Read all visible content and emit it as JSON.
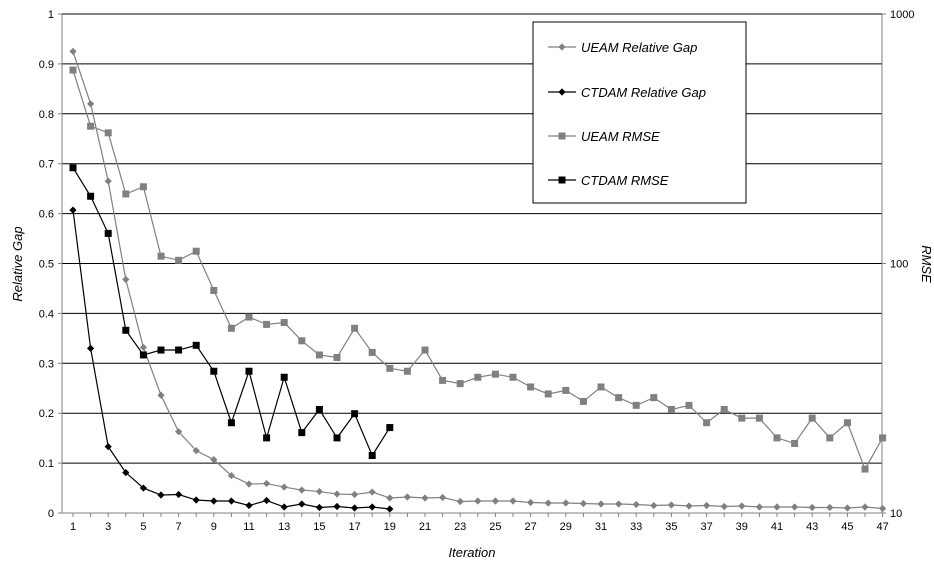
{
  "chart_data": {
    "type": "line",
    "xlabel": "Iteration",
    "ylabel": "Relative Gap",
    "y2label": "RMSE",
    "xlim": [
      1,
      47
    ],
    "ylim": [
      0,
      1
    ],
    "y2lim": [
      10,
      1000
    ],
    "y2_scale": "log",
    "x_tick_labels": [
      "1",
      "3",
      "5",
      "7",
      "9",
      "11",
      "13",
      "15",
      "17",
      "19",
      "21",
      "23",
      "25",
      "27",
      "29",
      "31",
      "33",
      "35",
      "37",
      "39",
      "41",
      "43",
      "45",
      "47"
    ],
    "y_tick_labels": [
      "0",
      "0.1",
      "0.2",
      "0.3",
      "0.4",
      "0.5",
      "0.6",
      "0.7",
      "0.8",
      "0.9",
      "1"
    ],
    "y2_tick_labels": [
      "10",
      "100",
      "1000"
    ],
    "grid": "horizontal",
    "legend_position": "top-right",
    "series": [
      {
        "name": "UEAM Relative Gap",
        "axis": "left",
        "marker": "diamond",
        "color": "#808080",
        "x": [
          1,
          2,
          3,
          4,
          5,
          6,
          7,
          8,
          9,
          10,
          11,
          12,
          13,
          14,
          15,
          16,
          17,
          18,
          19,
          20,
          21,
          22,
          23,
          24,
          25,
          26,
          27,
          28,
          29,
          30,
          31,
          32,
          33,
          34,
          35,
          36,
          37,
          38,
          39,
          40,
          41,
          42,
          43,
          44,
          45,
          46,
          47
        ],
        "values": [
          0.925,
          0.82,
          0.665,
          0.468,
          0.332,
          0.236,
          0.163,
          0.125,
          0.107,
          0.075,
          0.058,
          0.059,
          0.052,
          0.046,
          0.043,
          0.038,
          0.037,
          0.042,
          0.03,
          0.032,
          0.03,
          0.031,
          0.023,
          0.024,
          0.024,
          0.024,
          0.021,
          0.02,
          0.02,
          0.019,
          0.018,
          0.018,
          0.017,
          0.015,
          0.016,
          0.014,
          0.015,
          0.013,
          0.014,
          0.012,
          0.012,
          0.012,
          0.011,
          0.011,
          0.01,
          0.012,
          0.009
        ]
      },
      {
        "name": "CTDAM Relative Gap",
        "axis": "left",
        "marker": "diamond",
        "color": "#000000",
        "x": [
          1,
          2,
          3,
          4,
          5,
          6,
          7,
          8,
          9,
          10,
          11,
          12,
          13,
          14,
          15,
          16,
          17,
          18,
          19
        ],
        "values": [
          0.607,
          0.33,
          0.133,
          0.081,
          0.05,
          0.036,
          0.037,
          0.026,
          0.024,
          0.024,
          0.015,
          0.025,
          0.012,
          0.018,
          0.011,
          0.013,
          0.01,
          0.012,
          0.008
        ]
      },
      {
        "name": "UEAM RMSE",
        "axis": "right",
        "marker": "square",
        "color": "#808080",
        "x": [
          1,
          2,
          3,
          4,
          5,
          6,
          7,
          8,
          9,
          10,
          11,
          12,
          13,
          14,
          15,
          16,
          17,
          18,
          19,
          20,
          21,
          22,
          23,
          24,
          25,
          26,
          27,
          28,
          29,
          30,
          31,
          32,
          33,
          34,
          35,
          36,
          37,
          38,
          39,
          40,
          41,
          42,
          43,
          44,
          45,
          46,
          47
        ],
        "values": [
          596,
          355,
          334,
          190,
          203,
          107,
          103,
          112,
          78,
          55,
          61,
          57,
          58,
          49,
          43,
          42,
          55,
          44,
          38,
          37,
          45,
          34,
          33,
          35,
          36,
          35,
          32,
          30,
          31,
          28,
          32,
          29,
          27,
          29,
          26,
          27,
          23,
          26,
          24,
          24,
          20,
          19,
          24,
          20,
          23,
          15,
          20
        ]
      },
      {
        "name": "CTDAM RMSE",
        "axis": "right",
        "marker": "square",
        "color": "#000000",
        "x": [
          1,
          2,
          3,
          4,
          5,
          6,
          7,
          8,
          9,
          10,
          11,
          12,
          13,
          14,
          15,
          16,
          17,
          18,
          19
        ],
        "values": [
          242,
          186,
          132,
          54,
          43,
          45,
          45,
          47,
          37,
          23,
          37,
          20,
          35,
          21,
          26,
          20,
          25,
          17,
          22
        ]
      }
    ]
  }
}
